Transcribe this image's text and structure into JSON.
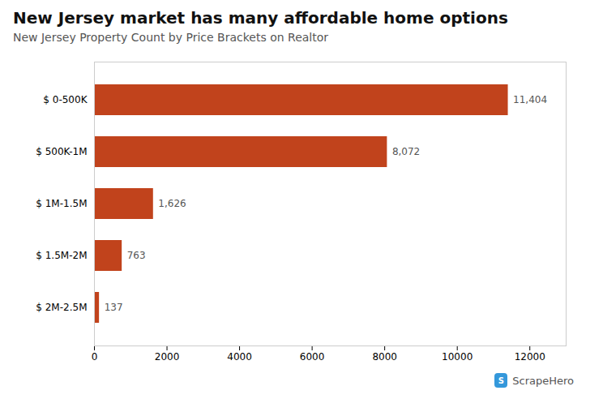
{
  "chart_data": {
    "type": "bar",
    "orientation": "horizontal",
    "title": "New Jersey market has many affordable home options",
    "subtitle": "New Jersey Property Count by Price Brackets on Realtor",
    "categories": [
      "$ 2M-2.5M",
      "$ 1.5M-2M",
      "$ 1M-1.5M",
      "$ 500K-1M",
      "$ 0-500K"
    ],
    "values": [
      137,
      763,
      1626,
      8072,
      11404
    ],
    "value_labels": [
      "137",
      "763",
      "1,626",
      "8,072",
      "11,404"
    ],
    "data_labels": true,
    "color": "#C1431C",
    "xlim": [
      0,
      13000
    ],
    "xticks": [
      0,
      2000,
      4000,
      6000,
      8000,
      10000,
      12000
    ],
    "grid": false,
    "annotations": [
      "S",
      "ScrapeHero"
    ]
  }
}
